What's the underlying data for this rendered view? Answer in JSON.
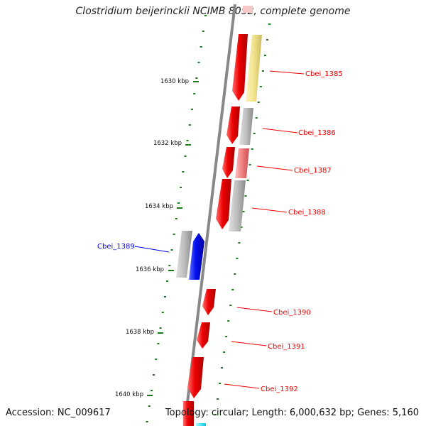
{
  "title": "Clostridium beijerinckii NCIMB 8052, complete genome",
  "footer": {
    "accession": "Accession: NC_009617",
    "topology": "Topology: circular; Length: 6,000,632 bp; Genes: 5,160"
  },
  "ruler": {
    "ticks": [
      "1630 kbp",
      "1632 kbp",
      "1634 kbp",
      "1636 kbp",
      "1638 kbp",
      "1640 kbp"
    ]
  },
  "colors": {
    "forward_gene": "#ee0000",
    "reverse_gene": "#0000ee",
    "gray_feature": "#b8b8b8",
    "yellow_feature": "#f2e38e",
    "pink_feature": "#f08080",
    "tick_green": "#1a7a1a",
    "backbone": "#888888"
  },
  "genes": [
    {
      "name": "Cbei_1385",
      "strand": "forward",
      "side": "right"
    },
    {
      "name": "Cbei_1386",
      "strand": "forward",
      "side": "right"
    },
    {
      "name": "Cbei_1387",
      "strand": "forward",
      "side": "right"
    },
    {
      "name": "Cbei_1388",
      "strand": "forward",
      "side": "right"
    },
    {
      "name": "Cbei_1389",
      "strand": "reverse",
      "side": "left"
    },
    {
      "name": "Cbei_1390",
      "strand": "forward",
      "side": "right"
    },
    {
      "name": "Cbei_1391",
      "strand": "forward",
      "side": "right"
    },
    {
      "name": "Cbei_1392",
      "strand": "forward",
      "side": "right"
    }
  ]
}
